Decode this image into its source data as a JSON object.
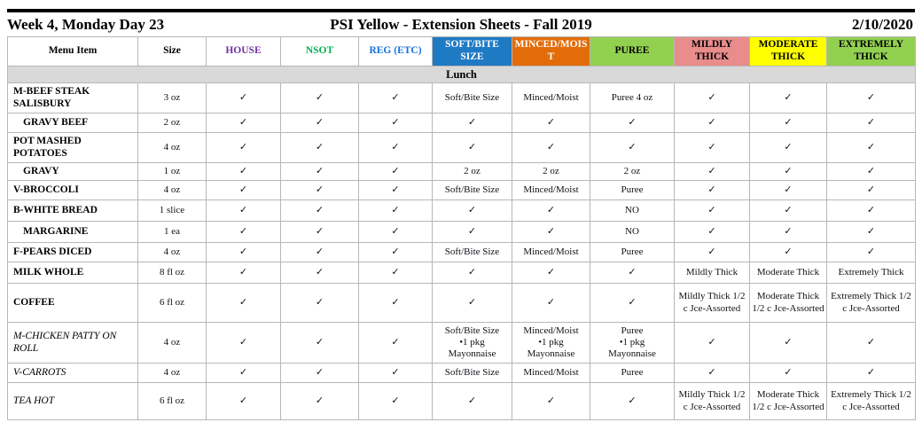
{
  "header": {
    "left": "Week 4, Monday Day 23",
    "center": "PSI Yellow - Extension Sheets - Fall 2019",
    "right": "2/10/2020"
  },
  "table": {
    "section_label": "Lunch",
    "check_glyph": "✓",
    "columns": [
      {
        "id": "menu-item",
        "label": "Menu Item",
        "fg": "#000000",
        "bg": "#ffffff"
      },
      {
        "id": "size",
        "label": "Size",
        "fg": "#000000",
        "bg": "#ffffff"
      },
      {
        "id": "house",
        "label": "HOUSE",
        "fg": "#7030A0",
        "bg": "#ffffff"
      },
      {
        "id": "nsot",
        "label": "NSOT",
        "fg": "#00B050",
        "bg": "#ffffff"
      },
      {
        "id": "reg-etc",
        "label": "REG (ETC)",
        "fg": "#1470D8",
        "bg": "#ffffff"
      },
      {
        "id": "soft-bite-size",
        "label": "SOFT/BITE SIZE",
        "fg": "#ffffff",
        "bg": "#1F7AC4"
      },
      {
        "id": "minced-moist",
        "label": "MINCED/MOIST",
        "fg": "#ffffff",
        "bg": "#E36C0A"
      },
      {
        "id": "puree",
        "label": "PUREE",
        "fg": "#000000",
        "bg": "#92D050"
      },
      {
        "id": "mildly-thick",
        "label": "MILDLY THICK",
        "fg": "#000000",
        "bg": "#E88C8C"
      },
      {
        "id": "moderate-thick",
        "label": "MODERATE THICK",
        "fg": "#000000",
        "bg": "#FFFF00"
      },
      {
        "id": "extremely-thick",
        "label": "EXTREMELY THICK",
        "fg": "#000000",
        "bg": "#92D050"
      }
    ],
    "rows": [
      {
        "item": "M-BEEF STEAK SALISBURY",
        "size": "3 oz",
        "item_style": "bold",
        "values": [
          "✓",
          "✓",
          "✓",
          "Soft/Bite Size",
          "Minced/Moist",
          "Puree 4 oz",
          "✓",
          "✓",
          "✓"
        ]
      },
      {
        "item": "GRAVY BEEF",
        "size": "2 oz",
        "item_style": "bold-indent",
        "values": [
          "✓",
          "✓",
          "✓",
          "✓",
          "✓",
          "✓",
          "✓",
          "✓",
          "✓"
        ]
      },
      {
        "item": "POT MASHED POTATOES",
        "size": "4 oz",
        "item_style": "bold",
        "values": [
          "✓",
          "✓",
          "✓",
          "✓",
          "✓",
          "✓",
          "✓",
          "✓",
          "✓"
        ]
      },
      {
        "item": "GRAVY",
        "size": "1 oz",
        "item_style": "bold-indent",
        "values": [
          "✓",
          "✓",
          "✓",
          "2 oz",
          "2 oz",
          "2 oz",
          "✓",
          "✓",
          "✓"
        ]
      },
      {
        "item": "V-BROCCOLI",
        "size": "4 oz",
        "item_style": "bold",
        "values": [
          "✓",
          "✓",
          "✓",
          "Soft/Bite Size",
          "Minced/Moist",
          "Puree",
          "✓",
          "✓",
          "✓"
        ]
      },
      {
        "item": "B-WHITE BREAD",
        "size": "1 slice",
        "item_style": "bold",
        "values": [
          "✓",
          "✓",
          "✓",
          "✓",
          "✓",
          "NO",
          "✓",
          "✓",
          "✓"
        ]
      },
      {
        "item": "MARGARINE",
        "size": "1 ea",
        "item_style": "bold-indent",
        "values": [
          "✓",
          "✓",
          "✓",
          "✓",
          "✓",
          "NO",
          "✓",
          "✓",
          "✓"
        ]
      },
      {
        "item": "F-PEARS DICED",
        "size": "4 oz",
        "item_style": "bold",
        "values": [
          "✓",
          "✓",
          "✓",
          "Soft/Bite Size",
          "Minced/Moist",
          "Puree",
          "✓",
          "✓",
          "✓"
        ]
      },
      {
        "item": "MILK WHOLE",
        "size": "8 fl oz",
        "item_style": "bold",
        "values": [
          "✓",
          "✓",
          "✓",
          "✓",
          "✓",
          "✓",
          "Mildly Thick",
          "Moderate Thick",
          "Extremely Thick"
        ]
      },
      {
        "item": "COFFEE",
        "size": "6 fl oz",
        "item_style": "bold",
        "values": [
          "✓",
          "✓",
          "✓",
          "✓",
          "✓",
          "✓",
          "Mildly Thick 1/2 c Jce-Assorted",
          "Moderate Thick 1/2 c Jce-Assorted",
          "Extremely Thick 1/2 c Jce-Assorted"
        ]
      },
      {
        "item": "M-CHICKEN PATTY ON ROLL",
        "size": "4 oz",
        "item_style": "italic",
        "values": [
          "✓",
          "✓",
          "✓",
          "Soft/Bite Size\n•1 pkg\nMayonnaise",
          "Minced/Moist\n•1 pkg\nMayonnaise",
          "Puree\n•1 pkg\nMayonnaise",
          "✓",
          "✓",
          "✓"
        ]
      },
      {
        "item": "V-CARROTS",
        "size": "4 oz",
        "item_style": "italic",
        "values": [
          "✓",
          "✓",
          "✓",
          "Soft/Bite Size",
          "Minced/Moist",
          "Puree",
          "✓",
          "✓",
          "✓"
        ]
      },
      {
        "item": "TEA HOT",
        "size": "6 fl oz",
        "item_style": "italic",
        "values": [
          "✓",
          "✓",
          "✓",
          "✓",
          "✓",
          "✓",
          "Mildly Thick 1/2 c Jce-Assorted",
          "Moderate Thick 1/2 c Jce-Assorted",
          "Extremely Thick 1/2 c Jce-Assorted"
        ]
      }
    ]
  }
}
